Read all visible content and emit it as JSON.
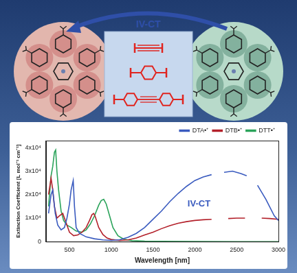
{
  "header": {
    "arrow_label": "IV-CT"
  },
  "chart_data": {
    "type": "line",
    "x_label": "Wavelength [nm]",
    "y_label": "Extinction Coefficient [L mol⁻¹ cm⁻¹]",
    "xlim": [
      220,
      3000
    ],
    "xticks": [
      500,
      1000,
      1500,
      2000,
      2500,
      3000
    ],
    "ylim": [
      0,
      43000
    ],
    "yticks": [
      0,
      {
        "value": 10000,
        "label": "1x10⁴"
      },
      {
        "value": 20000,
        "label": "2x10⁴"
      },
      {
        "value": 30000,
        "label": "3x10⁴"
      },
      {
        "value": 40000,
        "label": "4x10⁴"
      }
    ],
    "grid": false,
    "legend": "top right",
    "annotations": [
      {
        "text": "IV-CT",
        "x": 2050,
        "y": 16000,
        "color": "#3a5bbf"
      }
    ],
    "series": [
      {
        "name": "DTA•⁺",
        "color": "#3a5bbf",
        "x": [
          250,
          280,
          300,
          330,
          360,
          400,
          440,
          470,
          500,
          520,
          545,
          560,
          580,
          620,
          700,
          800,
          900,
          1000,
          1100,
          1200,
          1300,
          1400,
          1500,
          1600,
          1700,
          1800,
          1900,
          2000,
          2100,
          2200,
          2250,
          2300,
          2350,
          2450,
          2550,
          2620,
          2650,
          2700,
          2750,
          2850,
          2950,
          3000
        ],
        "values": [
          12000,
          20000,
          22000,
          12000,
          7000,
          5000,
          6000,
          10000,
          16000,
          22000,
          26000,
          15000,
          6000,
          3500,
          2000,
          1200,
          700,
          500,
          800,
          1800,
          3500,
          6000,
          9500,
          13000,
          17000,
          20500,
          23500,
          26000,
          27500,
          28500,
          null,
          null,
          29500,
          30000,
          29000,
          28000,
          null,
          null,
          24000,
          18000,
          11000,
          9000
        ]
      },
      {
        "name": "DTB•⁺",
        "color": "#b3202a",
        "x": [
          250,
          280,
          300,
          320,
          350,
          380,
          420,
          460,
          500,
          550,
          600,
          650,
          700,
          740,
          770,
          790,
          810,
          850,
          900,
          950,
          1000,
          1100,
          1200,
          1300,
          1400,
          1500,
          1600,
          1700,
          1800,
          1900,
          2000,
          2100,
          2200,
          2250,
          2300,
          2400,
          2500,
          2600,
          2650,
          2700,
          2800,
          2900,
          3000
        ],
        "values": [
          20000,
          27000,
          22000,
          15000,
          10000,
          11000,
          12000,
          8000,
          4000,
          2500,
          2800,
          4000,
          6000,
          9000,
          11500,
          12000,
          10500,
          6000,
          3000,
          1500,
          900,
          500,
          700,
          1500,
          2800,
          4000,
          5500,
          6800,
          7800,
          8500,
          9000,
          9300,
          9500,
          null,
          null,
          9800,
          10000,
          10000,
          null,
          null,
          10000,
          9800,
          9500
        ]
      },
      {
        "name": "DTT•⁺",
        "color": "#2aa35a",
        "x": [
          250,
          280,
          300,
          320,
          335,
          350,
          370,
          400,
          430,
          470,
          520,
          580,
          650,
          700,
          750,
          800,
          850,
          880,
          910,
          940,
          980,
          1020,
          1080,
          1150,
          1250,
          1400,
          1600,
          2000,
          2500,
          3000
        ],
        "values": [
          15000,
          28000,
          32000,
          38000,
          39000,
          30000,
          22000,
          13000,
          9000,
          7000,
          6000,
          4500,
          4000,
          5000,
          7500,
          11000,
          15500,
          17500,
          18000,
          16000,
          11000,
          6000,
          2500,
          1000,
          400,
          200,
          100,
          50,
          0,
          0
        ]
      }
    ]
  }
}
